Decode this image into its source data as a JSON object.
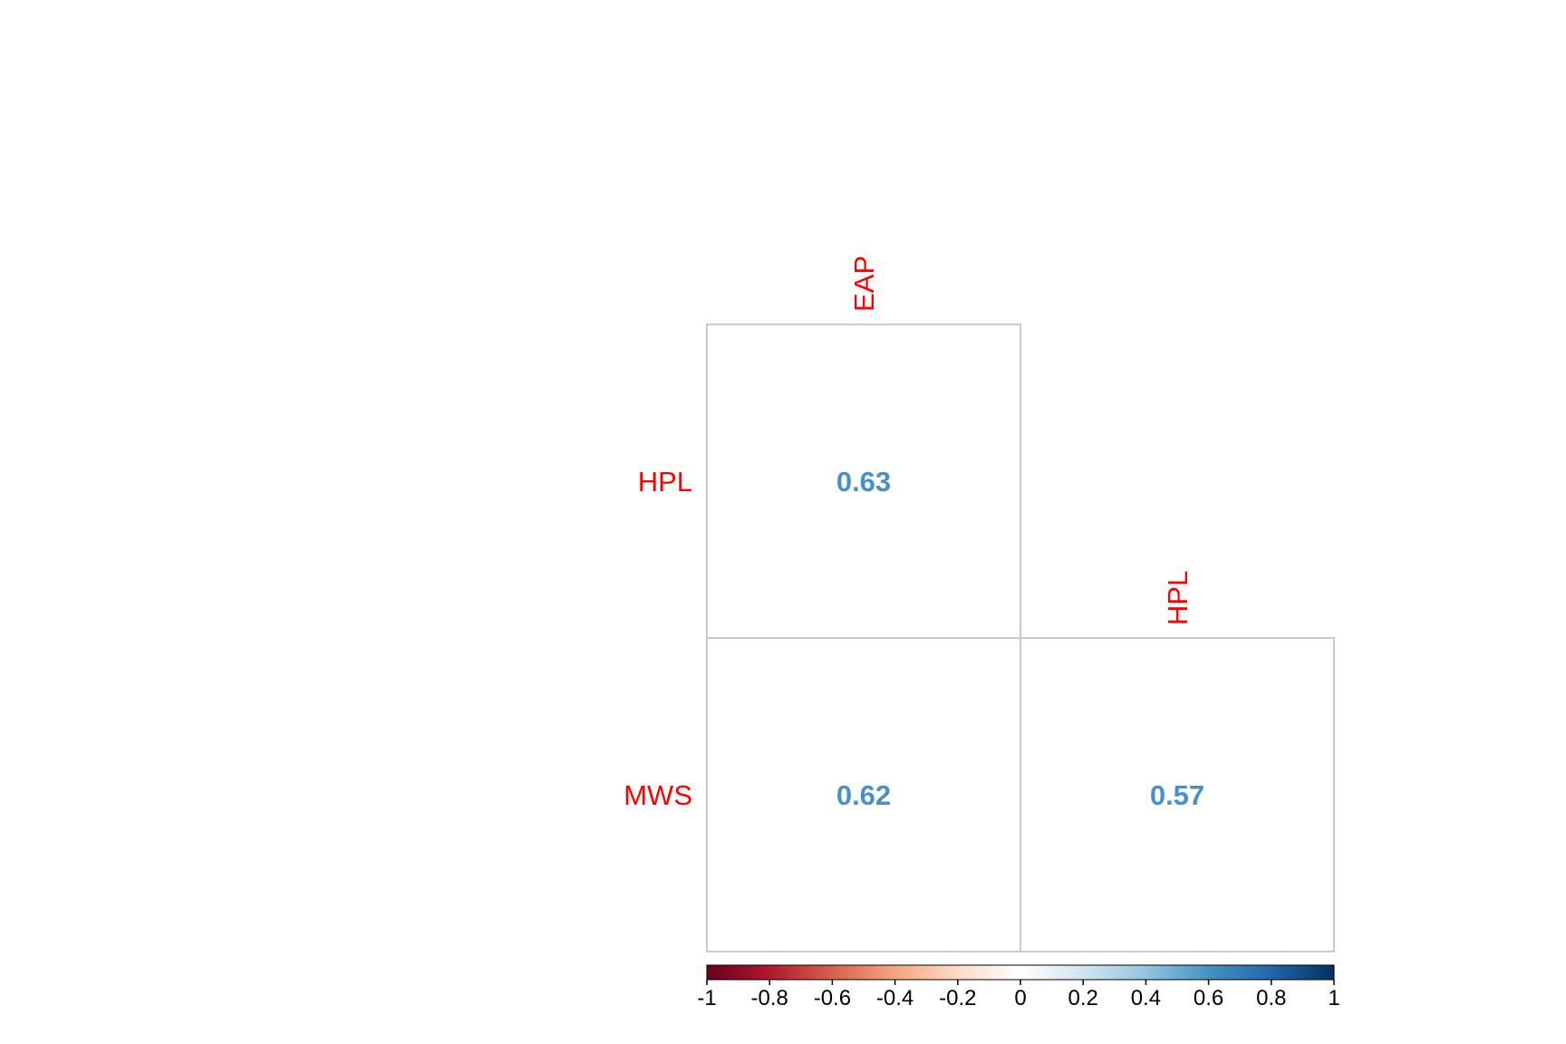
{
  "chart_data": {
    "type": "heatmap",
    "title": "",
    "layout": "lower-triangle",
    "column_labels": [
      "EAP",
      "HPL"
    ],
    "row_labels": [
      "HPL",
      "MWS"
    ],
    "cells": [
      {
        "row": "HPL",
        "col": "EAP",
        "value": 0.63,
        "label": "0.63"
      },
      {
        "row": "MWS",
        "col": "EAP",
        "value": 0.62,
        "label": "0.62"
      },
      {
        "row": "MWS",
        "col": "HPL",
        "value": 0.57,
        "label": "0.57"
      }
    ],
    "colorbar": {
      "range": [
        -1,
        1
      ],
      "orientation": "horizontal",
      "placement": "bottom",
      "ticks": [
        -1,
        -0.8,
        -0.6,
        -0.4,
        -0.2,
        0,
        0.2,
        0.4,
        0.6,
        0.8,
        1
      ],
      "tick_labels": [
        "-1",
        "-0.8",
        "-0.6",
        "-0.4",
        "-0.2",
        "0",
        "0.2",
        "0.4",
        "0.6",
        "0.8",
        "1"
      ],
      "colors": [
        "#67001f",
        "#b2182b",
        "#d6604d",
        "#f4a582",
        "#fddbc7",
        "#ffffff",
        "#d1e5f0",
        "#92c5de",
        "#4393c3",
        "#2166ac",
        "#053061"
      ]
    },
    "label_color": "#ff0000",
    "value_color": "#4a90c8",
    "grid_color": "#c8c8c8"
  }
}
